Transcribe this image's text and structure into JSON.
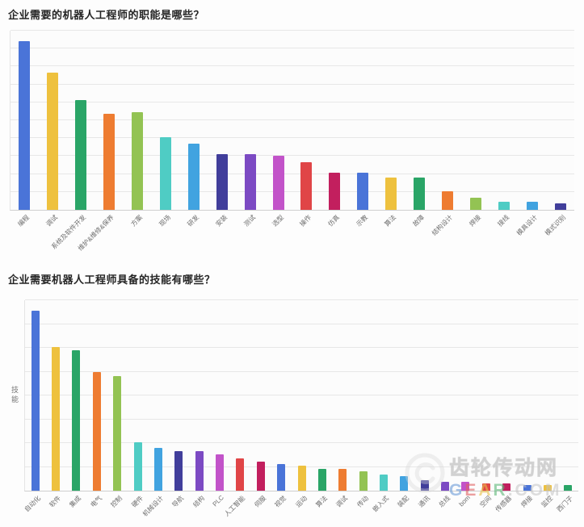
{
  "palette": [
    "#4a74d8",
    "#eec13e",
    "#2aa567",
    "#ee7c31",
    "#93c353",
    "#4fccc4",
    "#41a3e0",
    "#413e9b",
    "#7c4ac3",
    "#c253c9",
    "#e04547",
    "#c21f5e"
  ],
  "chart_data": [
    {
      "type": "bar",
      "title": "企业需要的机器人工程师的职能是哪些？",
      "xlabel": "",
      "ylabel": "",
      "categories": [
        "编程",
        "调试",
        "系统及软件开发",
        "维护&维修&保养",
        "方案",
        "现场",
        "研发",
        "安装",
        "测试",
        "选型",
        "操作",
        "仿真",
        "示教",
        "算法",
        "故障",
        "结构设计",
        "焊接",
        "接线",
        "模具设计",
        "模式识别"
      ],
      "values": [
        100,
        81,
        65,
        57,
        58,
        43,
        39,
        33,
        33,
        32,
        28,
        22,
        22,
        19,
        19,
        11,
        7,
        5,
        5,
        4
      ],
      "ylim": [
        0,
        106
      ],
      "grid": true,
      "gridlines": 10,
      "legend": false,
      "value_note": "y-axis has no numeric tick labels; values are relative estimates with tallest bar = 100"
    },
    {
      "type": "bar",
      "title": "企业需要机器人工程师具备的技能有哪些？",
      "xlabel": "",
      "ylabel": "技能",
      "categories": [
        "自动化",
        "软件",
        "集成",
        "电气",
        "控制",
        "硬件",
        "机械设计",
        "导航",
        "结构",
        "PLC",
        "人工智能",
        "伺服",
        "视觉",
        "运动",
        "算法",
        "调试",
        "传动",
        "嵌入式",
        "装配",
        "通讯",
        "总线",
        "bom",
        "空间",
        "传感器",
        "焊接",
        "监控",
        "西门子"
      ],
      "values": [
        100,
        80,
        78,
        66,
        64,
        27,
        24,
        22,
        22,
        20,
        18,
        16,
        15,
        14,
        12,
        12,
        11,
        9,
        8,
        6,
        5,
        5,
        4,
        4,
        3,
        3,
        3
      ],
      "ylim": [
        0,
        106
      ],
      "grid": true,
      "gridlines": 8,
      "legend": false,
      "value_note": "y-axis has no numeric tick labels; values are relative estimates with tallest bar = 100"
    }
  ],
  "watermark": {
    "brand": "齿轮传动网",
    "domain_letters": [
      "G",
      "E",
      "A",
      "R"
    ],
    "domain_suffix": ".COM",
    "letter_colors": [
      "#6b9bd8",
      "#e06060",
      "#e8c04a",
      "#5cb878"
    ]
  }
}
